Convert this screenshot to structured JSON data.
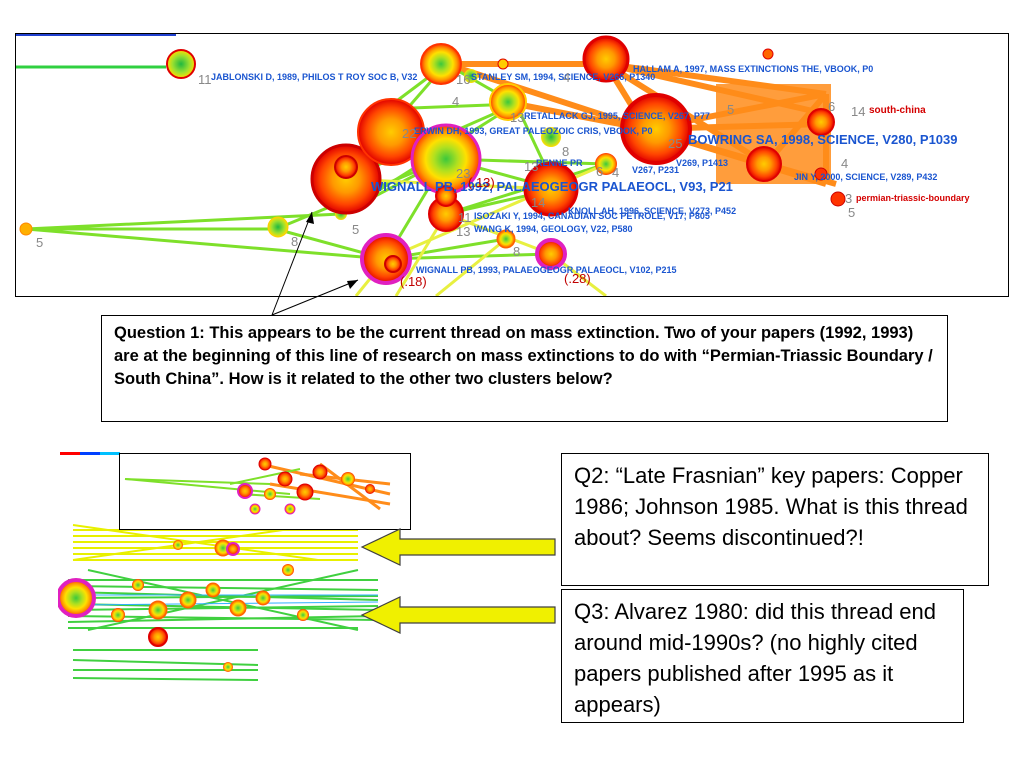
{
  "top_panel": {
    "labels": {
      "jablonski": "JABLONSKI D, 1989, PHILOS T ROY SOC B, V32",
      "stanley": "STANLEY SM, 1994, SCIENCE, V266, P1340",
      "hallam": "HALLAM A, 1997, MASS EXTINCTIONS THE, VBOOK, P0",
      "retallack": "RETALLACK GJ, 1995, SCIENCE, V267, P77",
      "south_china": "south-china",
      "erwin": "ERWIN DH, 1993, GREAT PALEOZOIC CRIS, VBOOK, P0",
      "bowring": "BOWRING SA, 1998, SCIENCE, V280, P1039",
      "renne": "RENNE PR",
      "v267": "V267, P231",
      "v269": "V269, P1413",
      "jin": "JIN Y, 2000, SCIENCE, V289, P432",
      "wignall_1992": "WIGNALL PB, 1992, PALAEOGEOGR PALAEOCL, V93, P21",
      "ptb": "permian-triassic-boundary",
      "knoll": "KNOLL AH, 1996, SCIENCE, V273, P452",
      "isozaki": "ISOZAKI Y, 1994, CANADIAN SOC PETROLE, V17, P805",
      "wang": "WANG K, 1994, GEOLOGY, V22, P580",
      "wignall_1993": "WIGNALL PB, 1993, PALAEOGEOGR PALAEOCL, V102, P215"
    },
    "numbers": [
      "11",
      "16",
      "14",
      "13",
      "4",
      "5",
      "22",
      "25",
      "23",
      "8",
      "11",
      "13",
      "8",
      "5",
      "8",
      "5",
      "4",
      "3",
      "5",
      "6",
      "14",
      "4",
      "6",
      "13",
      "4"
    ],
    "annotations": {
      "a13": "(.13)",
      "a18": "(.18)",
      "a28": "(.28)"
    }
  },
  "questions": {
    "q1": "Question 1: This appears to be the current thread on mass extinction. Two of your papers (1992, 1993) are at the beginning of this line of research on mass extinctions to do with “Permian-Triassic Boundary / South China”. How is it related to the other two clusters below?",
    "q2": "Q2: “Late Frasnian” key papers: Copper 1986; Johnson 1985. What is this thread about? Seems discontinued?!",
    "q3": "Q3: Alvarez 1980: did this thread end around mid-1990s? (no highly cited papers published after 1995 as it appears)"
  },
  "colors": {
    "edge_orange": "#ff8c1a",
    "edge_green": "#7ee02a",
    "edge_yellow": "#e8f040",
    "node_red": "#e01010",
    "node_magenta": "#e020c0",
    "arrow_yellow": "#f0f000",
    "label_blue": "#1a55d0",
    "label_red": "#d40000"
  }
}
